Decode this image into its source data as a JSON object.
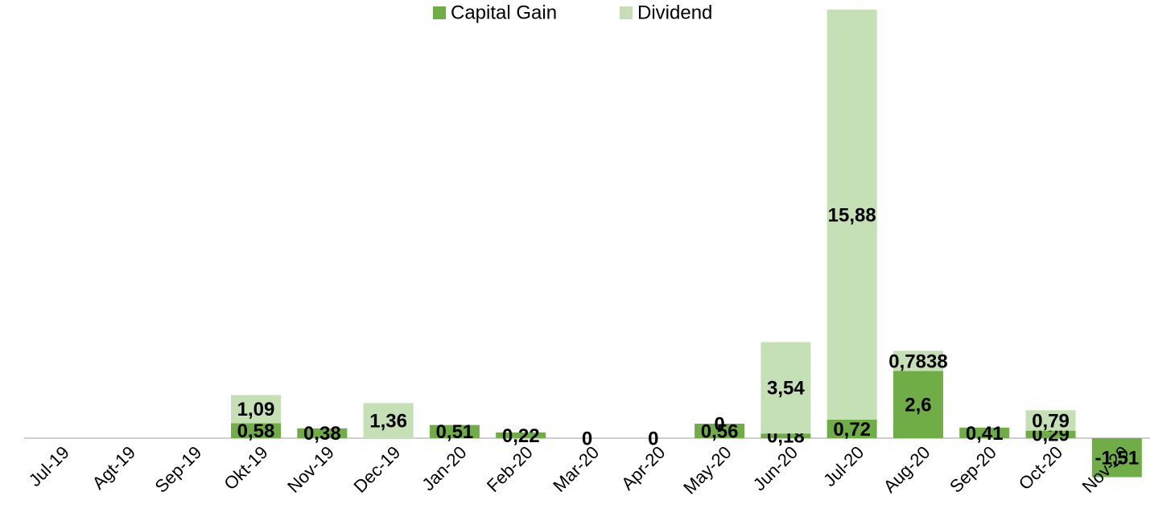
{
  "chart_data": {
    "type": "stacked_bar",
    "categories": [
      "Jul-19",
      "Agt-19",
      "Sep-19",
      "Okt-19",
      "Nov-19",
      "Dec-19",
      "Jan-20",
      "Feb-20",
      "Mar-20",
      "Apr-20",
      "May-20",
      "Jun-20",
      "Jul-20",
      "Aug-20",
      "Sep-20",
      "Oct-20",
      "Nov-20"
    ],
    "series": [
      {
        "name": "Capital Gain",
        "color": "#70ad47",
        "values": [
          null,
          null,
          null,
          0.58,
          0.38,
          null,
          0.51,
          0.22,
          0,
          0,
          0.56,
          0.18,
          0.72,
          2.6,
          0.41,
          0.29,
          -1.51
        ],
        "value_labels": [
          null,
          null,
          null,
          "0,58",
          "0,38",
          null,
          "0,51",
          "0,22",
          "0",
          "0",
          "0,56",
          "0,18",
          "0,72",
          "2,6",
          "0,41",
          "0,29",
          "-1,51"
        ]
      },
      {
        "name": "Dividend",
        "color": "#c5e0b4",
        "values": [
          null,
          null,
          null,
          1.09,
          null,
          1.36,
          null,
          null,
          null,
          null,
          0,
          3.54,
          15.88,
          0.7838,
          null,
          0.79,
          null
        ],
        "value_labels": [
          null,
          null,
          null,
          "1,09",
          null,
          "1,36",
          null,
          null,
          null,
          null,
          "0",
          "3,54",
          "15,88",
          "0,7838",
          null,
          "0,79",
          null
        ]
      }
    ],
    "legend": "top"
  }
}
